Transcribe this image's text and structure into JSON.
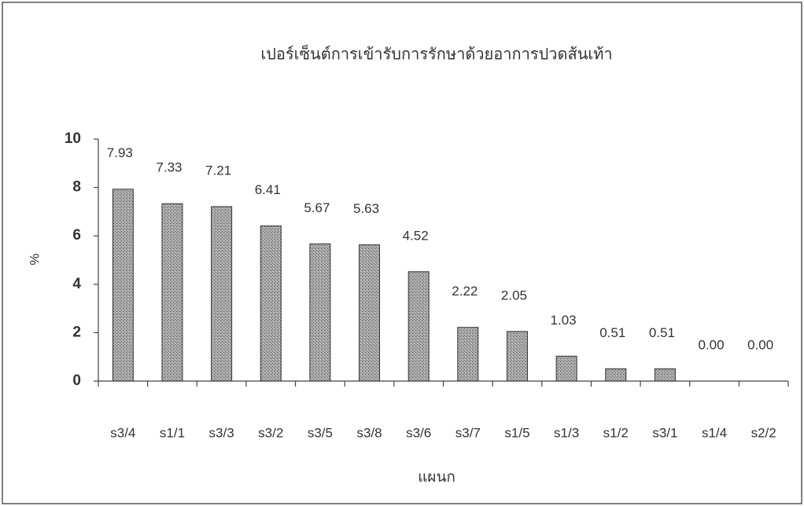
{
  "chart_data": {
    "type": "bar",
    "title": "เปอร์เซ็นต์การเข้ารับการรักษาด้วยอาการปวดส้นเท้า",
    "xlabel": "แผนก",
    "ylabel": "%",
    "categories": [
      "s3/4",
      "s1/1",
      "s3/3",
      "s3/2",
      "s3/5",
      "s3/8",
      "s3/6",
      "s3/7",
      "s1/5",
      "s1/3",
      "s1/2",
      "s3/1",
      "s1/4",
      "s2/2"
    ],
    "values": [
      7.93,
      7.33,
      7.21,
      6.41,
      5.67,
      5.63,
      4.52,
      2.22,
      2.05,
      1.03,
      0.51,
      0.51,
      0,
      0
    ],
    "value_labels": [
      "7.93",
      "7.33",
      "7.21",
      "6.41",
      "5.67",
      "5.63",
      "4.52",
      "2.22",
      "2.05",
      "1.03",
      "0.51",
      "0.51",
      "0.00",
      "0.00"
    ],
    "color": "#9a9a9a",
    "ylim": [
      0,
      10
    ],
    "yticks": [
      0,
      2,
      4,
      6,
      8,
      10
    ],
    "grid": false
  }
}
